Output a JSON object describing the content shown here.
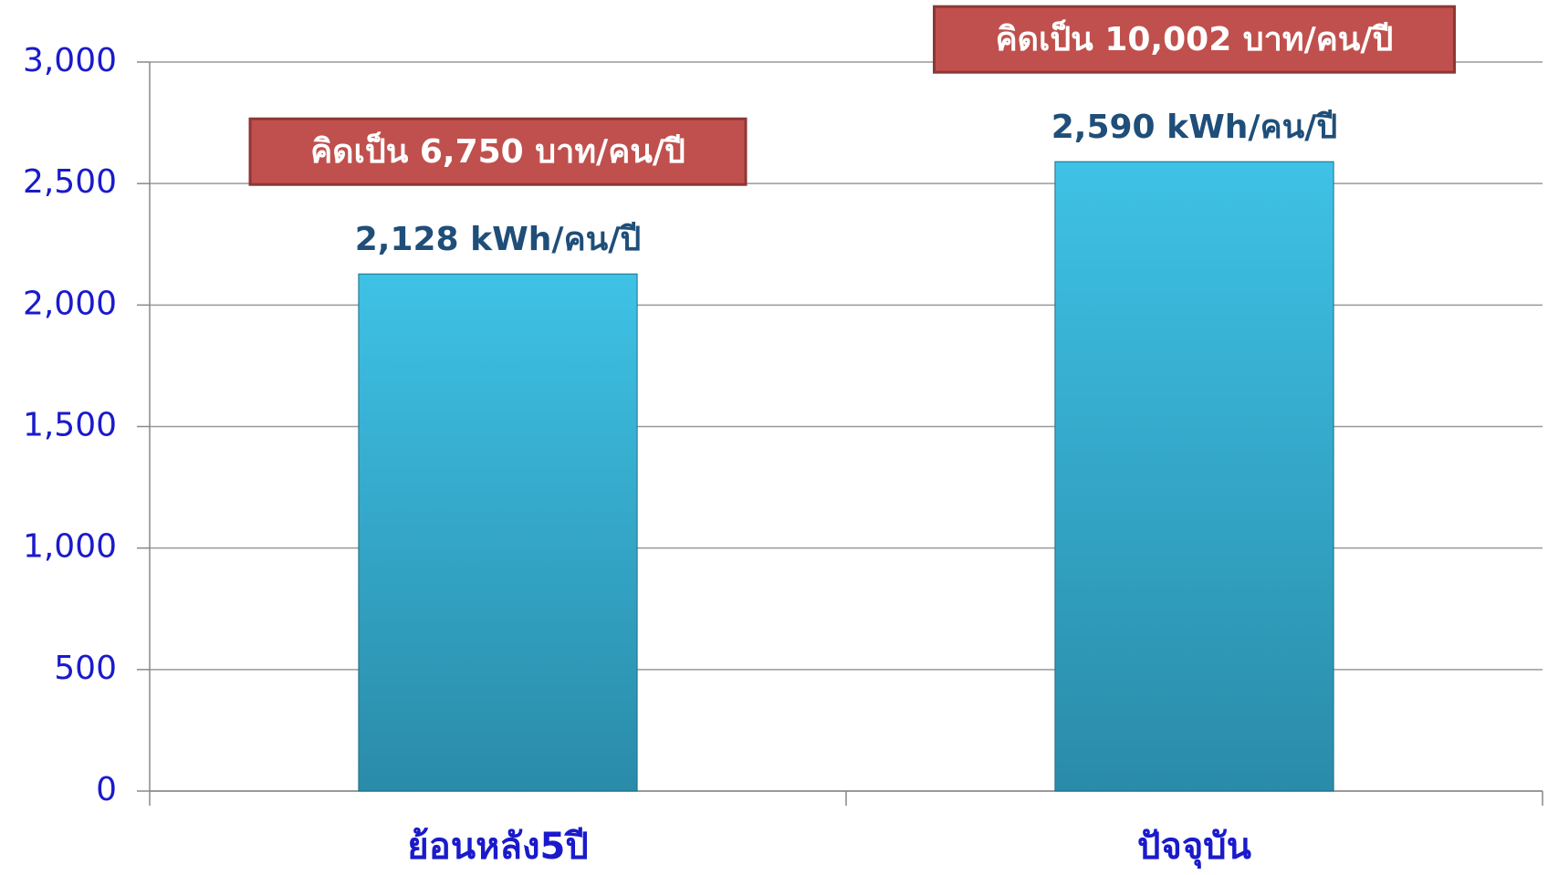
{
  "chart_data": {
    "type": "bar",
    "categories": [
      "ย้อนหลัง5ปี",
      "ปัจจุบัน"
    ],
    "values": [
      2128,
      2590
    ],
    "value_labels": [
      "2,128 kWh/คน/ปี",
      "2,590 kWh/คน/ปี"
    ],
    "annotations": [
      "คิดเป็น 6,750 บาท/คน/ปี",
      "คิดเป็น 10,002 บาท/คน/ปี"
    ],
    "color": "#33a9cc",
    "ylim": [
      0,
      3000
    ],
    "yticks": [
      0,
      500,
      {
        "value": 1000,
        "label": "1,000"
      },
      {
        "value": 1500,
        "label": "1,500"
      },
      {
        "value": 2000,
        "label": "2,000"
      },
      {
        "value": 2500,
        "label": "2,500"
      },
      {
        "value": 3000,
        "label": "3,000"
      }
    ],
    "grid": true
  }
}
